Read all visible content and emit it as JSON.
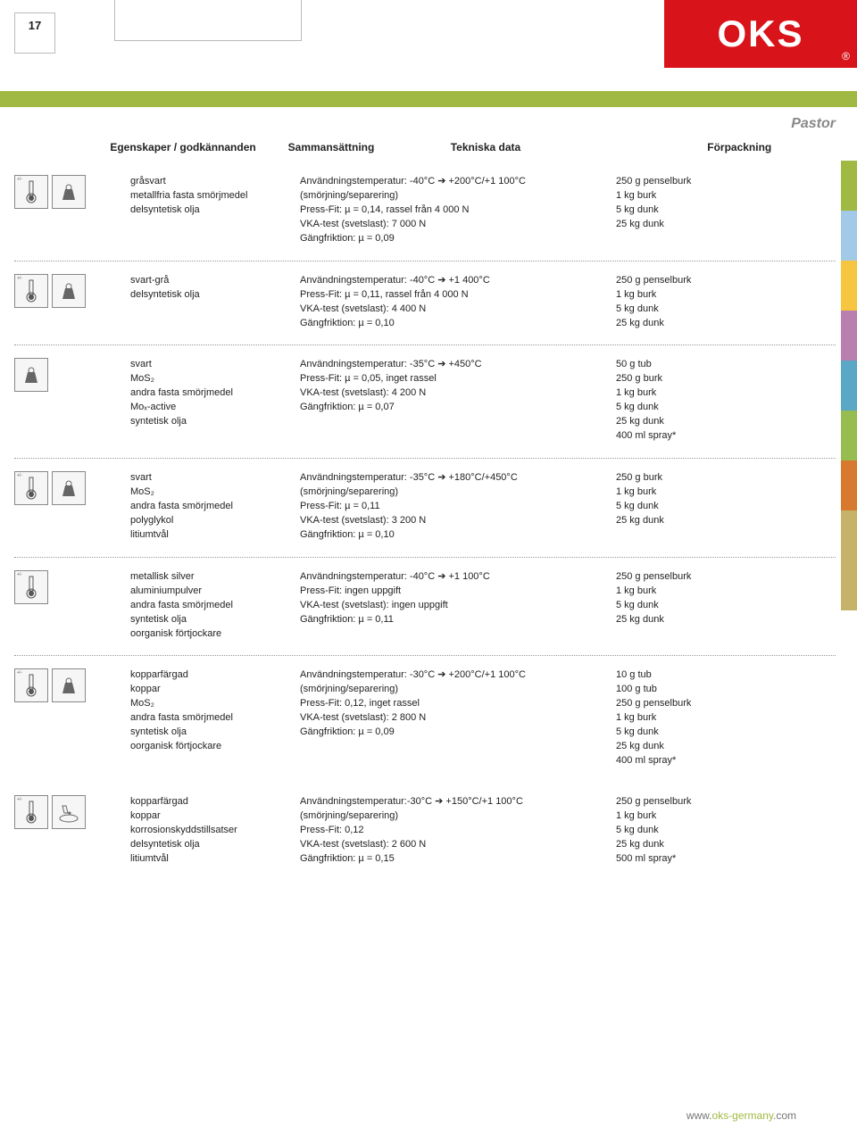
{
  "page_number": "17",
  "logo_text": "OKS",
  "logo_r": "®",
  "brand_right": "Pastor",
  "headers": {
    "h1": "Egenskaper / godkännanden",
    "h2": "Sammansättning",
    "h3": "Tekniska data",
    "h4": "Förpackning"
  },
  "tab_colors": [
    "#a0b943",
    "#a3c9e8",
    "#f7c641",
    "#b97fae",
    "#5aa7c6",
    "#97bc4f",
    "#d77a2f",
    "#c6b36a",
    "#c6b36a"
  ],
  "footer_pre": "www.",
  "footer_mid": "oks-germany",
  "footer_suf": ".com",
  "rows": [
    {
      "icons": [
        "therm",
        "weight"
      ],
      "comp": "gråsvart\nmetallfria fasta smörjmedel\ndelsyntetisk olja",
      "tech": "Användningstemperatur: -40°C ➔ +200°C/+1 100°C\n(smörjning/separering)\nPress-Fit: µ = 0,14, rassel från 4 000 N\nVKA-test (svetslast): 7 000 N\nGängfriktion: µ = 0,09",
      "pack": "250 g penselburk\n1 kg burk\n5 kg dunk\n25 kg dunk"
    },
    {
      "icons": [
        "therm",
        "weight"
      ],
      "comp": "svart-grå\ndelsyntetisk olja",
      "tech": "Användningstemperatur: -40°C ➔ +1 400°C\nPress-Fit: µ = 0,11, rassel från 4 000 N\nVKA-test (svetslast): 4 400 N\nGängfriktion: µ = 0,10",
      "pack": "250 g penselburk\n1 kg burk\n5 kg dunk\n25 kg dunk"
    },
    {
      "icons": [
        "weight"
      ],
      "comp": "svart\nMoS₂\nandra fasta smörjmedel\nMoₓ-active\nsyntetisk olja",
      "tech": "Användningstemperatur: -35°C ➔ +450°C\nPress-Fit: µ = 0,05, inget rassel\nVKA-test (svetslast): 4 200 N\nGängfriktion: µ = 0,07",
      "pack": "50 g tub\n250 g burk\n1 kg burk\n5 kg dunk\n25 kg dunk\n400 ml spray*"
    },
    {
      "icons": [
        "therm",
        "weight"
      ],
      "comp": "svart\nMoS₂\nandra fasta smörjmedel\npolyglykol\nlitiumtvål",
      "tech": "Användningstemperatur: -35°C ➔ +180°C/+450°C\n(smörjning/separering)\nPress-Fit: µ = 0,11\nVKA-test (svetslast): 3 200 N\nGängfriktion: µ = 0,10",
      "pack": "250 g burk\n1 kg burk\n5 kg dunk\n25 kg dunk"
    },
    {
      "icons": [
        "therm"
      ],
      "comp": "metallisk silver\naluminiumpulver\nandra fasta smörjmedel\nsyntetisk olja\noorganisk förtjockare",
      "tech": "Användningstemperatur: -40°C ➔ +1 100°C\nPress-Fit: ingen uppgift\nVKA-test (svetslast): ingen uppgift\nGängfriktion: µ = 0,11",
      "pack": "250 g penselburk\n1 kg burk\n5 kg dunk\n25 kg dunk"
    },
    {
      "icons": [
        "therm",
        "weight"
      ],
      "comp": "kopparfärgad\nkoppar\nMoS₂\nandra fasta smörjmedel\nsyntetisk olja\noorganisk förtjockare",
      "tech": "Användningstemperatur: -30°C ➔ +200°C/+1 100°C\n(smörjning/separering)\nPress-Fit: 0,12, inget rassel\nVKA-test (svetslast): 2 800 N\nGängfriktion: µ = 0,09",
      "pack": "10 g tub\n100 g tub\n250 g penselburk\n1 kg burk\n5 kg dunk\n25 kg dunk\n400 ml spray*"
    },
    {
      "icons": [
        "therm",
        "drop"
      ],
      "comp": "kopparfärgad\nkoppar\nkorrosionskyddstillsatser\ndelsyntetisk olja\nlitiumtvål",
      "tech": "Användningstemperatur:-30°C ➔ +150°C/+1 100°C\n(smörjning/separering)\nPress-Fit: 0,12\nVKA-test (svetslast): 2 600 N\nGängfriktion: µ = 0,15",
      "pack": "250 g penselburk\n1 kg burk\n5 kg dunk\n25 kg dunk\n500 ml spray*"
    }
  ]
}
